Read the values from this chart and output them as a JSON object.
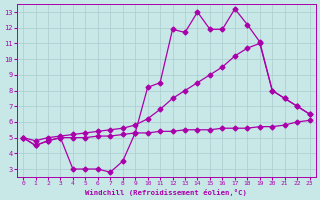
{
  "xlabel": "Windchill (Refroidissement éolien,°C)",
  "bg_color": "#c8e8e8",
  "line_color": "#aa00aa",
  "grid_color": "#aacccc",
  "xlim": [
    -0.5,
    23.5
  ],
  "ylim": [
    2.5,
    13.5
  ],
  "xticks": [
    0,
    1,
    2,
    3,
    4,
    5,
    6,
    7,
    8,
    9,
    10,
    11,
    12,
    13,
    14,
    15,
    16,
    17,
    18,
    19,
    20,
    21,
    22,
    23
  ],
  "yticks": [
    3,
    4,
    5,
    6,
    7,
    8,
    9,
    10,
    11,
    12,
    13
  ],
  "line1_x": [
    0,
    1,
    2,
    3,
    4,
    5,
    6,
    7,
    8,
    9,
    10,
    11,
    12,
    13,
    14,
    15,
    16,
    17,
    18,
    19,
    20,
    21,
    22,
    23
  ],
  "line1_y": [
    5.0,
    4.5,
    4.8,
    5.0,
    3.0,
    3.0,
    3.0,
    2.8,
    3.5,
    5.3,
    5.3,
    5.4,
    5.4,
    5.5,
    5.5,
    5.5,
    5.6,
    5.6,
    5.6,
    5.7,
    5.7,
    5.8,
    6.0,
    6.1
  ],
  "line2_x": [
    0,
    1,
    2,
    3,
    4,
    5,
    6,
    7,
    8,
    9,
    10,
    11,
    12,
    13,
    14,
    15,
    16,
    17,
    18,
    19,
    20,
    21,
    22,
    23
  ],
  "line2_y": [
    5.0,
    4.5,
    4.8,
    5.0,
    5.0,
    5.0,
    5.1,
    5.1,
    5.2,
    5.3,
    8.2,
    8.5,
    11.9,
    11.7,
    13.0,
    11.9,
    11.9,
    13.2,
    12.2,
    11.1,
    8.0,
    7.5,
    7.0,
    6.5
  ],
  "line3_x": [
    0,
    1,
    2,
    3,
    4,
    5,
    6,
    7,
    8,
    9,
    10,
    11,
    12,
    13,
    14,
    15,
    16,
    17,
    18,
    19,
    20,
    21,
    22,
    23
  ],
  "line3_y": [
    5.0,
    4.8,
    5.0,
    5.1,
    5.2,
    5.3,
    5.4,
    5.5,
    5.6,
    5.8,
    6.2,
    6.8,
    7.5,
    8.0,
    8.5,
    9.0,
    9.5,
    10.2,
    10.7,
    11.0,
    8.0,
    7.5,
    7.0,
    6.5
  ],
  "marker": "D",
  "markersize": 2.5,
  "linewidth": 0.9
}
